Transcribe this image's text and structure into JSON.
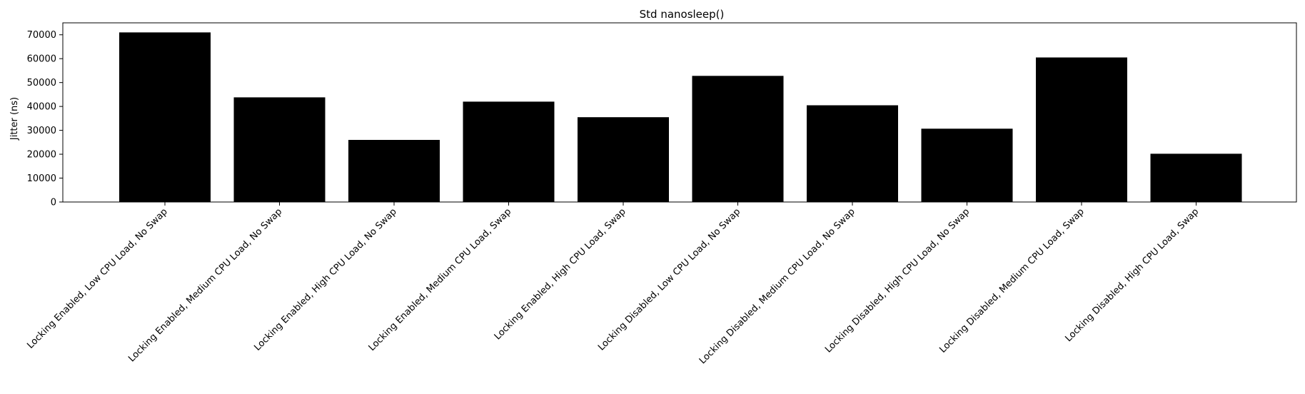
{
  "chart_data": {
    "type": "bar",
    "title": "Std nanosleep()",
    "xlabel": "",
    "ylabel": "Jitter (ns)",
    "ylim": [
      0,
      75000
    ],
    "yticks": [
      0,
      10000,
      20000,
      30000,
      40000,
      50000,
      60000,
      70000
    ],
    "grid": false,
    "bar_color": "#000000",
    "categories": [
      "Locking Enabled, Low CPU Load, No Swap",
      "Locking Enabled, Medium CPU Load, No Swap",
      "Locking Enabled, High CPU Load, No Swap",
      "Locking Enabled, Medium CPU Load, Swap",
      "Locking Enabled, High CPU Load, Swap",
      "Locking Disabled, Low CPU Load, No Swap",
      "Locking Disabled, Medium CPU Load, No Swap",
      "Locking Disabled, High CPU Load, No Swap",
      "Locking Disabled, Medium CPU Load, Swap",
      "Locking Disabled, High CPU Load, Swap"
    ],
    "values": [
      71000,
      43800,
      26000,
      42000,
      35500,
      52800,
      40500,
      30700,
      60500,
      20200
    ]
  }
}
